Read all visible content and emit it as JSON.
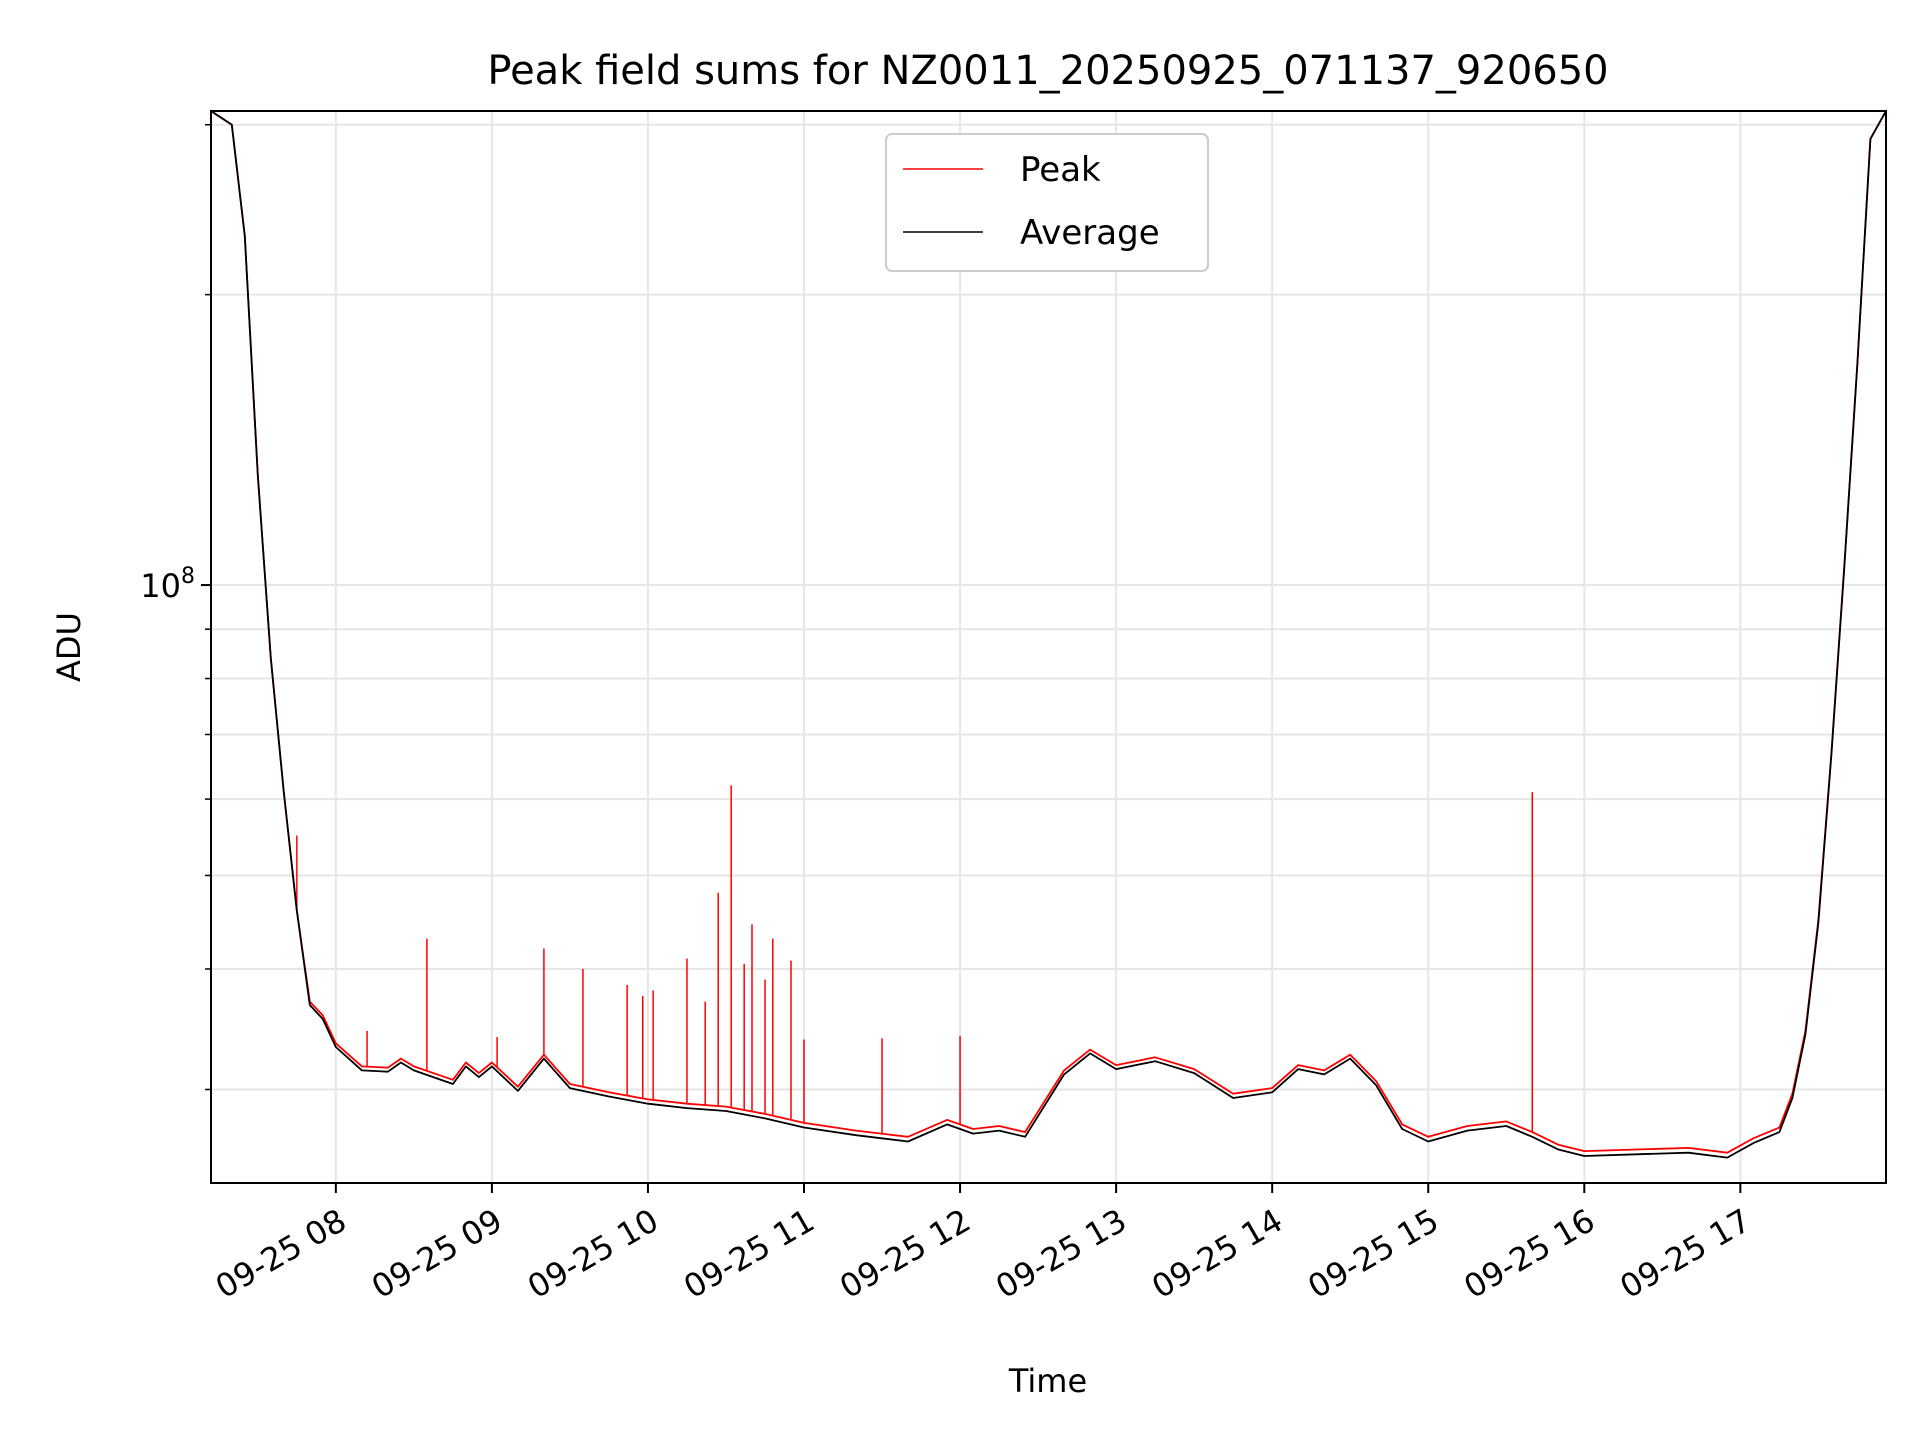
{
  "chart_data": {
    "type": "line",
    "title": "Peak field sums for NZ0011_20250925_071137_920650",
    "xlabel": "Time",
    "ylabel": "ADU",
    "yscale": "log",
    "ylim": [
      24000000,
      310000000
    ],
    "xlim": [
      "2025-09-25 07:12",
      "2025-09-25 17:56"
    ],
    "grid": true,
    "legend_position": "top-center",
    "x_ticks": [
      "09-25 08",
      "09-25 09",
      "09-25 10",
      "09-25 11",
      "09-25 12",
      "09-25 13",
      "09-25 14",
      "09-25 15",
      "09-25 16",
      "09-25 17"
    ],
    "y_tick_labels": [
      {
        "base": "10",
        "exp": "8",
        "value": 100000000
      }
    ],
    "y_minor_ticks": [
      30000000,
      40000000,
      50000000,
      60000000,
      70000000,
      80000000,
      90000000,
      200000000,
      300000000
    ],
    "series": [
      {
        "name": "Peak",
        "color": "#ff0000",
        "points": [
          [
            "2025-09-25 07:12",
            310000000
          ],
          [
            "2025-09-25 07:20",
            300000000
          ],
          [
            "2025-09-25 07:25",
            230000000
          ],
          [
            "2025-09-25 07:30",
            130000000
          ],
          [
            "2025-09-25 07:35",
            84000000
          ],
          [
            "2025-09-25 07:40",
            61000000
          ],
          [
            "2025-09-25 07:45",
            46000000
          ],
          [
            "2025-09-25 07:50",
            37000000
          ],
          [
            "2025-09-25 07:55",
            35800000
          ],
          [
            "2025-09-25 08:00",
            33500000
          ],
          [
            "2025-09-25 08:10",
            31700000
          ],
          [
            "2025-09-25 08:20",
            31600000
          ],
          [
            "2025-09-25 08:25",
            32300000
          ],
          [
            "2025-09-25 08:30",
            31700000
          ],
          [
            "2025-09-25 08:45",
            30700000
          ],
          [
            "2025-09-25 08:50",
            32000000
          ],
          [
            "2025-09-25 08:55",
            31200000
          ],
          [
            "2025-09-25 09:00",
            32000000
          ],
          [
            "2025-09-25 09:10",
            30200000
          ],
          [
            "2025-09-25 09:20",
            32600000
          ],
          [
            "2025-09-25 09:30",
            30400000
          ],
          [
            "2025-09-25 09:45",
            29800000
          ],
          [
            "2025-09-25 10:00",
            29300000
          ],
          [
            "2025-09-25 10:15",
            29000000
          ],
          [
            "2025-09-25 10:30",
            28800000
          ],
          [
            "2025-09-25 10:45",
            28300000
          ],
          [
            "2025-09-25 11:00",
            27700000
          ],
          [
            "2025-09-25 11:20",
            27200000
          ],
          [
            "2025-09-25 11:40",
            26800000
          ],
          [
            "2025-09-25 11:55",
            27900000
          ],
          [
            "2025-09-25 12:05",
            27300000
          ],
          [
            "2025-09-25 12:15",
            27500000
          ],
          [
            "2025-09-25 12:25",
            27100000
          ],
          [
            "2025-09-25 12:40",
            31400000
          ],
          [
            "2025-09-25 12:50",
            33000000
          ],
          [
            "2025-09-25 13:00",
            31800000
          ],
          [
            "2025-09-25 13:15",
            32400000
          ],
          [
            "2025-09-25 13:30",
            31500000
          ],
          [
            "2025-09-25 13:45",
            29700000
          ],
          [
            "2025-09-25 14:00",
            30100000
          ],
          [
            "2025-09-25 14:10",
            31800000
          ],
          [
            "2025-09-25 14:20",
            31400000
          ],
          [
            "2025-09-25 14:30",
            32600000
          ],
          [
            "2025-09-25 14:40",
            30600000
          ],
          [
            "2025-09-25 14:50",
            27600000
          ],
          [
            "2025-09-25 15:00",
            26800000
          ],
          [
            "2025-09-25 15:15",
            27500000
          ],
          [
            "2025-09-25 15:30",
            27800000
          ],
          [
            "2025-09-25 15:40",
            27100000
          ],
          [
            "2025-09-25 15:50",
            26300000
          ],
          [
            "2025-09-25 16:00",
            25900000
          ],
          [
            "2025-09-25 16:20",
            26000000
          ],
          [
            "2025-09-25 16:40",
            26100000
          ],
          [
            "2025-09-25 16:55",
            25800000
          ],
          [
            "2025-09-25 17:05",
            26700000
          ],
          [
            "2025-09-25 17:15",
            27400000
          ],
          [
            "2025-09-25 17:20",
            29700000
          ],
          [
            "2025-09-25 17:25",
            34500000
          ],
          [
            "2025-09-25 17:30",
            45000000
          ],
          [
            "2025-09-25 17:35",
            67000000
          ],
          [
            "2025-09-25 17:40",
            105000000
          ],
          [
            "2025-09-25 17:45",
            170000000
          ],
          [
            "2025-09-25 17:50",
            290000000
          ],
          [
            "2025-09-25 17:56",
            310000000
          ]
        ]
      },
      {
        "name": "Average",
        "color": "#000000",
        "points": [
          [
            "2025-09-25 07:12",
            310000000
          ],
          [
            "2025-09-25 07:20",
            300000000
          ],
          [
            "2025-09-25 07:25",
            230000000
          ],
          [
            "2025-09-25 07:30",
            130000000
          ],
          [
            "2025-09-25 07:35",
            84000000
          ],
          [
            "2025-09-25 07:40",
            61000000
          ],
          [
            "2025-09-25 07:45",
            46000000
          ],
          [
            "2025-09-25 07:50",
            36700000
          ],
          [
            "2025-09-25 07:55",
            35500000
          ],
          [
            "2025-09-25 08:00",
            33200000
          ],
          [
            "2025-09-25 08:10",
            31400000
          ],
          [
            "2025-09-25 08:20",
            31300000
          ],
          [
            "2025-09-25 08:25",
            32000000
          ],
          [
            "2025-09-25 08:30",
            31400000
          ],
          [
            "2025-09-25 08:45",
            30400000
          ],
          [
            "2025-09-25 08:50",
            31700000
          ],
          [
            "2025-09-25 08:55",
            30900000
          ],
          [
            "2025-09-25 09:00",
            31700000
          ],
          [
            "2025-09-25 09:10",
            29900000
          ],
          [
            "2025-09-25 09:20",
            32300000
          ],
          [
            "2025-09-25 09:30",
            30100000
          ],
          [
            "2025-09-25 09:45",
            29500000
          ],
          [
            "2025-09-25 10:00",
            29000000
          ],
          [
            "2025-09-25 10:15",
            28700000
          ],
          [
            "2025-09-25 10:30",
            28500000
          ],
          [
            "2025-09-25 10:45",
            28000000
          ],
          [
            "2025-09-25 11:00",
            27400000
          ],
          [
            "2025-09-25 11:20",
            26900000
          ],
          [
            "2025-09-25 11:40",
            26500000
          ],
          [
            "2025-09-25 11:55",
            27600000
          ],
          [
            "2025-09-25 12:05",
            27000000
          ],
          [
            "2025-09-25 12:15",
            27200000
          ],
          [
            "2025-09-25 12:25",
            26800000
          ],
          [
            "2025-09-25 12:40",
            31100000
          ],
          [
            "2025-09-25 12:50",
            32700000
          ],
          [
            "2025-09-25 13:00",
            31500000
          ],
          [
            "2025-09-25 13:15",
            32100000
          ],
          [
            "2025-09-25 13:30",
            31200000
          ],
          [
            "2025-09-25 13:45",
            29400000
          ],
          [
            "2025-09-25 14:00",
            29800000
          ],
          [
            "2025-09-25 14:10",
            31500000
          ],
          [
            "2025-09-25 14:20",
            31100000
          ],
          [
            "2025-09-25 14:30",
            32300000
          ],
          [
            "2025-09-25 14:40",
            30300000
          ],
          [
            "2025-09-25 14:50",
            27300000
          ],
          [
            "2025-09-25 15:00",
            26500000
          ],
          [
            "2025-09-25 15:15",
            27200000
          ],
          [
            "2025-09-25 15:30",
            27500000
          ],
          [
            "2025-09-25 15:40",
            26800000
          ],
          [
            "2025-09-25 15:50",
            26000000
          ],
          [
            "2025-09-25 16:00",
            25600000
          ],
          [
            "2025-09-25 16:20",
            25700000
          ],
          [
            "2025-09-25 16:40",
            25800000
          ],
          [
            "2025-09-25 16:55",
            25500000
          ],
          [
            "2025-09-25 17:05",
            26400000
          ],
          [
            "2025-09-25 17:15",
            27100000
          ],
          [
            "2025-09-25 17:20",
            29400000
          ],
          [
            "2025-09-25 17:25",
            34200000
          ],
          [
            "2025-09-25 17:30",
            44700000
          ],
          [
            "2025-09-25 17:35",
            66700000
          ],
          [
            "2025-09-25 17:40",
            104700000
          ],
          [
            "2025-09-25 17:45",
            169700000
          ],
          [
            "2025-09-25 17:50",
            290000000
          ],
          [
            "2025-09-25 17:56",
            310000000
          ]
        ]
      }
    ],
    "peak_spikes": [
      [
        "2025-09-25 07:45",
        55000000
      ],
      [
        "2025-09-25 08:12",
        34500000
      ],
      [
        "2025-09-25 08:35",
        43000000
      ],
      [
        "2025-09-25 09:02",
        34000000
      ],
      [
        "2025-09-25 09:20",
        42000000
      ],
      [
        "2025-09-25 09:35",
        40000000
      ],
      [
        "2025-09-25 09:52",
        38500000
      ],
      [
        "2025-09-25 09:58",
        37500000
      ],
      [
        "2025-09-25 10:02",
        38000000
      ],
      [
        "2025-09-25 10:15",
        41000000
      ],
      [
        "2025-09-25 10:22",
        37000000
      ],
      [
        "2025-09-25 10:27",
        48000000
      ],
      [
        "2025-09-25 10:32",
        62000000
      ],
      [
        "2025-09-25 10:37",
        40500000
      ],
      [
        "2025-09-25 10:40",
        44500000
      ],
      [
        "2025-09-25 10:45",
        39000000
      ],
      [
        "2025-09-25 10:48",
        43000000
      ],
      [
        "2025-09-25 10:55",
        40800000
      ],
      [
        "2025-09-25 11:00",
        33800000
      ],
      [
        "2025-09-25 11:30",
        33900000
      ],
      [
        "2025-09-25 12:00",
        34100000
      ],
      [
        "2025-09-25 15:40",
        61000000
      ]
    ]
  }
}
